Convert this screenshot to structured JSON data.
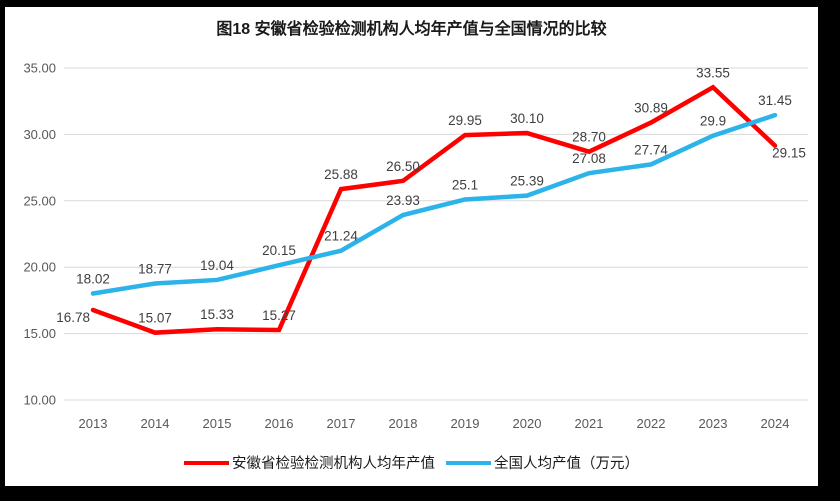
{
  "title": "图18 安徽省检验检测机构人均年产值与全国情况的比较",
  "chart_data": {
    "type": "line",
    "x": [
      "2013",
      "2014",
      "2015",
      "2016",
      "2017",
      "2018",
      "2019",
      "2020",
      "2021",
      "2022",
      "2023",
      "2024"
    ],
    "series": [
      {
        "name": "安徽省检验检测机构人均年产值",
        "color": "#FF0000",
        "values": [
          16.78,
          15.07,
          15.33,
          15.27,
          25.88,
          26.5,
          29.95,
          30.1,
          28.7,
          30.89,
          33.55,
          29.15
        ],
        "labels": [
          "16.78",
          "15.07",
          "15.33",
          "15.27",
          "25.88",
          "26.50",
          "29.95",
          "30.10",
          "28.70",
          "30.89",
          "33.55",
          "29.15"
        ]
      },
      {
        "name": "全国人均产值（万元）",
        "color": "#2BB3EA",
        "values": [
          18.02,
          18.77,
          19.04,
          20.15,
          21.24,
          23.93,
          25.1,
          25.39,
          27.08,
          27.74,
          29.9,
          31.45
        ],
        "labels": [
          "18.02",
          "18.77",
          "19.04",
          "20.15",
          "21.24",
          "23.93",
          "25.1",
          "25.39",
          "27.08",
          "27.74",
          "29.9",
          "31.45"
        ]
      }
    ],
    "ylim": [
      10,
      35
    ],
    "ytick_step": 5,
    "ytick_labels": [
      "10.00",
      "15.00",
      "20.00",
      "25.00",
      "30.00",
      "35.00"
    ],
    "xlabel": "",
    "ylabel": "",
    "grid": "horizontal-only",
    "legend_position": "bottom",
    "colors": {
      "gridline": "#D9D9D9",
      "axis_text": "#595959",
      "data_label_text": "#3F3F3F",
      "background": "#FFFFFF",
      "frame_border": "#000000"
    }
  }
}
